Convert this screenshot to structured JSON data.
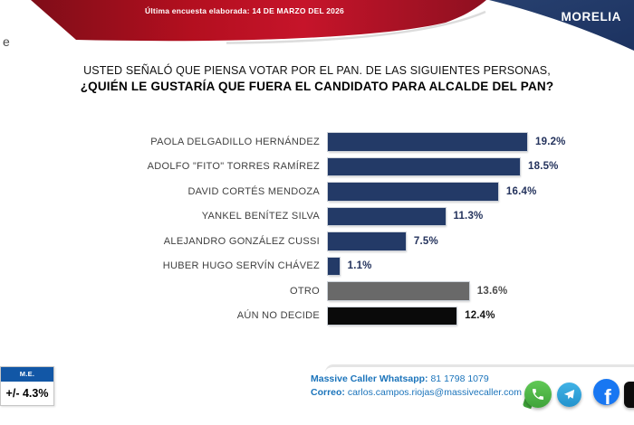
{
  "banner": {
    "survey_date_text": "Última encuesta elaborada: 14 DE MARZO DEL 2026",
    "region": "MORELIA",
    "red_color": "#b60f1f",
    "navy_color": "#20386a",
    "stray_letter": "e"
  },
  "question": {
    "line1": "USTED SEÑALÓ QUE PIENSA VOTAR POR EL PAN. DE LAS SIGUIENTES PERSONAS,",
    "line2": "¿QUIÉN LE GUSTARÍA QUE FUERA EL CANDIDATO PARA ALCALDE DEL PAN?"
  },
  "chart_data": {
    "type": "bar",
    "orientation": "horizontal",
    "categories": [
      "PAOLA DELGADILLO HERNÁNDEZ",
      "ADOLFO \"FITO\" TORRES RAMÍREZ",
      "DAVID CORTÉS MENDOZA",
      "YANKEL BENÍTEZ SILVA",
      "ALEJANDRO GONZÁLEZ CUSSI",
      "HUBER HUGO SERVÍN CHÁVEZ",
      "OTRO",
      "AÚN NO DECIDE"
    ],
    "values": [
      19.2,
      18.5,
      16.4,
      11.3,
      7.5,
      1.1,
      13.6,
      12.4
    ],
    "value_suffix": "%",
    "bar_colors": [
      "#233a67",
      "#233a67",
      "#233a67",
      "#233a67",
      "#233a67",
      "#233a67",
      "#696969",
      "#0a0a0a"
    ],
    "value_label_colors": [
      "#24335d",
      "#24335d",
      "#24335d",
      "#24335d",
      "#24335d",
      "#24335d",
      "#4c4c4c",
      "#161616"
    ],
    "xlim": [
      0,
      20
    ],
    "grid": false,
    "value_labels_shown": true
  },
  "margin_of_error": {
    "header": "M.E.",
    "value": "+/- 4.3%"
  },
  "footer": {
    "whatsapp_label": "Massive Caller Whatsapp:",
    "whatsapp_number": "81 1798 1079",
    "email_label": "Correo:",
    "email": "carlos.campos.riojas@massivecaller.com",
    "social_icons": [
      "whatsapp-icon",
      "telegram-icon",
      "facebook-icon",
      "cut-off-black-icon"
    ],
    "facebook_glyph": "f",
    "link_color": "#1b74bb"
  }
}
